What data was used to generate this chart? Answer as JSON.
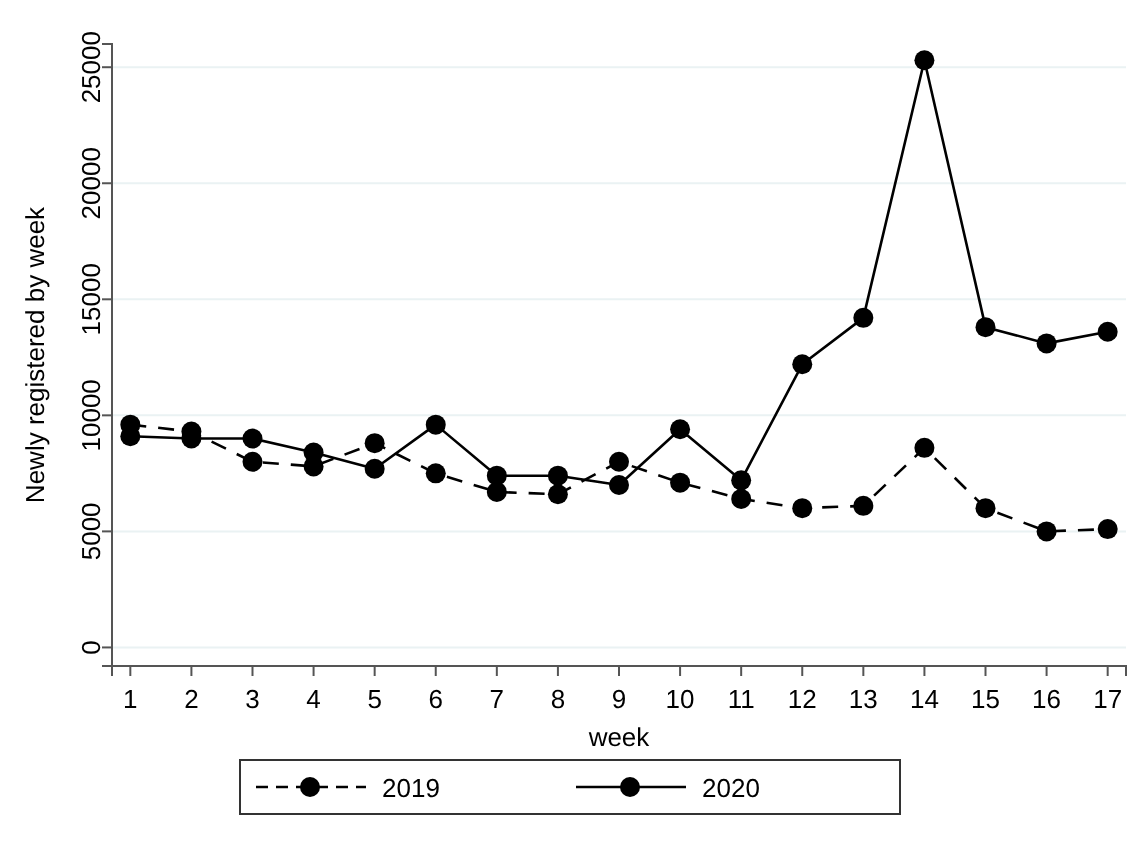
{
  "chart_data": {
    "type": "line",
    "xlabel": "week",
    "ylabel": "Newly registered by week",
    "x": [
      1,
      2,
      3,
      4,
      5,
      6,
      7,
      8,
      9,
      10,
      11,
      12,
      13,
      14,
      15,
      16,
      17
    ],
    "series": [
      {
        "name": "2019",
        "color": "#000000",
        "line_style": "dashed",
        "values": [
          9600,
          9300,
          8000,
          7800,
          8800,
          7500,
          6700,
          6600,
          8000,
          7100,
          6400,
          6000,
          6100,
          8600,
          6000,
          5000,
          5100
        ]
      },
      {
        "name": "2020",
        "color": "#000000",
        "line_style": "solid",
        "values": [
          9100,
          9000,
          9000,
          8400,
          7700,
          9600,
          7400,
          7400,
          7000,
          9400,
          7200,
          12200,
          14200,
          25300,
          13800,
          13100,
          13600
        ]
      }
    ],
    "xlim": [
      0.7,
      17.3
    ],
    "xticks": [
      1,
      2,
      3,
      4,
      5,
      6,
      7,
      8,
      9,
      10,
      11,
      12,
      13,
      14,
      15,
      16,
      17
    ],
    "ylim": [
      -800,
      26000
    ],
    "yticks": [
      0,
      5000,
      10000,
      15000,
      20000,
      25000
    ],
    "grid": "y",
    "legend": "bottom",
    "marker": "circle"
  }
}
